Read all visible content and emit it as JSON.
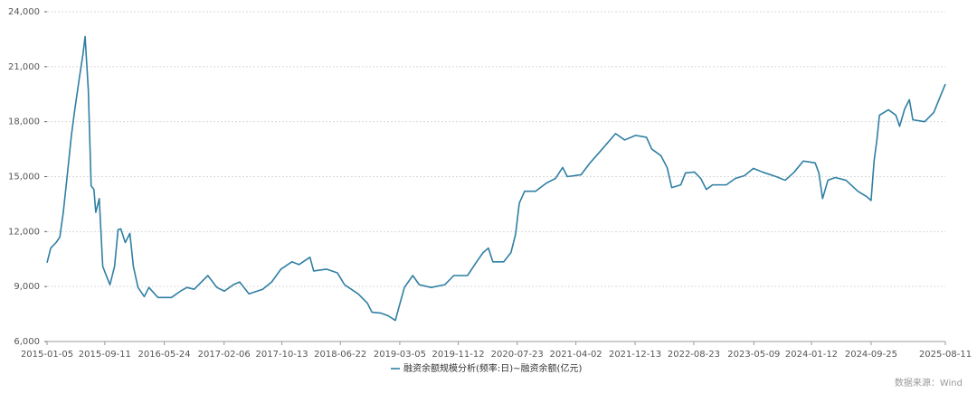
{
  "chart_data": {
    "type": "line",
    "x": [
      "2015-01-05",
      "2015-01-21",
      "2015-02-13",
      "2015-03-01",
      "2015-03-16",
      "2015-04-04",
      "2015-04-20",
      "2015-05-05",
      "2015-05-25",
      "2015-06-09",
      "2015-06-18",
      "2015-07-02",
      "2015-07-14",
      "2015-07-26",
      "2015-08-03",
      "2015-08-18",
      "2015-09-02",
      "2015-09-22",
      "2015-10-03",
      "2015-10-23",
      "2015-11-07",
      "2015-11-19",
      "2015-12-08",
      "2015-12-28",
      "2016-01-12",
      "2016-02-01",
      "2016-02-28",
      "2016-03-19",
      "2016-04-27",
      "2016-06-24",
      "2016-08-02",
      "2016-08-30",
      "2016-09-30",
      "2016-11-28",
      "2017-01-06",
      "2017-02-07",
      "2017-03-18",
      "2017-04-14",
      "2017-05-24",
      "2017-07-22",
      "2017-08-30",
      "2017-10-09",
      "2017-11-25",
      "2017-12-26",
      "2018-02-11",
      "2018-02-27",
      "2018-04-23",
      "2018-06-09",
      "2018-07-10",
      "2018-09-07",
      "2018-10-16",
      "2018-11-05",
      "2018-12-14",
      "2019-01-15",
      "2019-02-14",
      "2019-03-02",
      "2019-03-25",
      "2019-04-30",
      "2019-05-28",
      "2019-07-18",
      "2019-09-15",
      "2019-10-24",
      "2019-12-22",
      "2020-01-30",
      "2020-02-27",
      "2020-03-21",
      "2020-04-09",
      "2020-05-26",
      "2020-06-26",
      "2020-07-16",
      "2020-08-01",
      "2020-08-24",
      "2020-10-10",
      "2020-11-26",
      "2021-01-04",
      "2021-02-04",
      "2021-02-24",
      "2021-04-24",
      "2021-06-02",
      "2021-07-31",
      "2021-09-20",
      "2021-10-29",
      "2021-12-15",
      "2022-01-31",
      "2022-02-23",
      "2022-04-03",
      "2022-04-30",
      "2022-05-20",
      "2022-06-28",
      "2022-07-18",
      "2022-08-26",
      "2022-09-22",
      "2022-10-16",
      "2022-11-12",
      "2023-01-10",
      "2023-02-18",
      "2023-03-29",
      "2023-05-07",
      "2023-06-15",
      "2023-08-13",
      "2023-09-21",
      "2023-10-30",
      "2023-12-08",
      "2024-01-28",
      "2024-02-13",
      "2024-02-29",
      "2024-03-23",
      "2024-04-24",
      "2024-06-09",
      "2024-07-30",
      "2024-09-07",
      "2024-09-25",
      "2024-10-08",
      "2024-10-20",
      "2024-10-31",
      "2024-12-09",
      "2025-01-10",
      "2025-01-26",
      "2025-02-17",
      "2025-03-09",
      "2025-03-24",
      "2025-05-14",
      "2025-06-22",
      "2025-08-11"
    ],
    "series": [
      {
        "name": "融资余额规模分析(频率:日)~融资余额(亿元)",
        "color": "#2f7fa3",
        "values": [
          10300,
          11100,
          11400,
          11700,
          13050,
          15300,
          17250,
          18700,
          20450,
          21700,
          22650,
          19700,
          14500,
          14300,
          13050,
          13800,
          10100,
          9450,
          9100,
          10100,
          12100,
          12150,
          11400,
          11900,
          10100,
          8950,
          8450,
          8950,
          8400,
          8400,
          8750,
          8950,
          8850,
          9600,
          8950,
          8750,
          9100,
          9250,
          8600,
          8850,
          9250,
          9950,
          10350,
          10200,
          10600,
          9850,
          9950,
          9750,
          9100,
          8600,
          8100,
          7600,
          7550,
          7400,
          7150,
          7900,
          8950,
          9600,
          9100,
          8950,
          9100,
          9600,
          9600,
          10350,
          10850,
          11100,
          10350,
          10350,
          10850,
          11850,
          13550,
          14200,
          14200,
          14650,
          14900,
          15500,
          15000,
          15100,
          15750,
          16600,
          17350,
          17000,
          17250,
          17150,
          16500,
          16150,
          15500,
          14400,
          14550,
          15200,
          15250,
          14900,
          14300,
          14550,
          14550,
          14900,
          15050,
          15450,
          15250,
          15000,
          14800,
          15250,
          15850,
          15750,
          15200,
          13800,
          14800,
          14950,
          14800,
          14200,
          13900,
          13700,
          15850,
          17000,
          18350,
          18650,
          18350,
          17750,
          18700,
          19200,
          18100,
          18000,
          18500,
          20050
        ]
      }
    ],
    "xlim": [
      "2015-01-05",
      "2025-08-11"
    ],
    "xticks": [
      "2015-01-05",
      "2015-09-11",
      "2016-05-24",
      "2017-02-06",
      "2017-10-13",
      "2018-06-22",
      "2019-03-05",
      "2019-11-12",
      "2020-07-23",
      "2021-04-02",
      "2021-12-13",
      "2022-08-23",
      "2023-05-09",
      "2024-01-12",
      "2024-09-25",
      "2025-08-11"
    ],
    "ylim": [
      6000,
      24000
    ],
    "yticks": [
      {
        "value": 6000,
        "label": "6,000"
      },
      {
        "value": 9000,
        "label": "9,000"
      },
      {
        "value": 12000,
        "label": "12,000"
      },
      {
        "value": 15000,
        "label": "15,000"
      },
      {
        "value": 18000,
        "label": "18,000"
      },
      {
        "value": 21000,
        "label": "21,000"
      },
      {
        "value": 24000,
        "label": "24,000"
      }
    ],
    "grid": true,
    "source": "数据来源：Wind"
  }
}
